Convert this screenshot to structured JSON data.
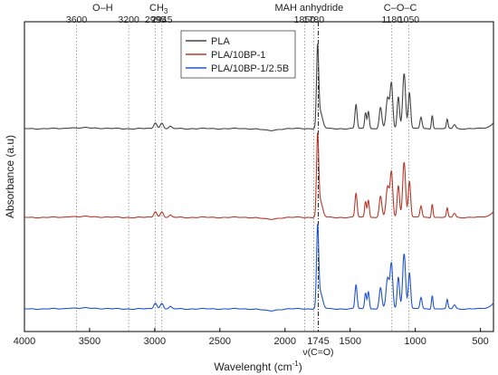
{
  "chart_data": {
    "type": "line",
    "title": "",
    "xlabel": "Wavelenght (cm",
    "xlabel_sup": "-1",
    "xlabel_close": ")",
    "ylabel": "Absorbance (a.u)",
    "xlim": [
      4000,
      400
    ],
    "x_reversed": true,
    "x_ticks": [
      4000,
      3500,
      3000,
      2500,
      2000,
      1500,
      1000,
      500
    ],
    "grid": false,
    "legend_position": "top-center",
    "series": [
      {
        "name": "PLA",
        "color": "#444444",
        "offset": 0.0
      },
      {
        "name": "PLA/10BP-1",
        "color": "#b5392b",
        "offset": -1.0
      },
      {
        "name": "PLA/10BP-1/2.5B",
        "color": "#2255cc",
        "offset": -2.0
      }
    ],
    "reference_lines": [
      3600,
      3200,
      2995,
      2945,
      1850,
      1780,
      1180,
      1050
    ],
    "reference_line_1745": 1745,
    "group_labels": [
      {
        "text": "O–H",
        "x": 3400
      },
      {
        "text": "CH",
        "sub": "3",
        "x": 2970
      },
      {
        "text": "MAH anhydride",
        "x": 1815
      },
      {
        "text": "C–O–C",
        "x": 1115
      }
    ],
    "wavenumber_labels": [
      {
        "text": "3600",
        "x": 3600
      },
      {
        "text": "3200",
        "x": 3200
      },
      {
        "text": "2995",
        "x": 2995
      },
      {
        "text": "2945",
        "x": 2945
      },
      {
        "text": "1850",
        "x": 1850
      },
      {
        "text": "1780",
        "x": 1780
      },
      {
        "text": "1180",
        "x": 1180
      },
      {
        "text": "1050",
        "x": 1050
      }
    ],
    "bottom_annotation": {
      "value": "1745",
      "label": "ν(C=O)"
    }
  }
}
